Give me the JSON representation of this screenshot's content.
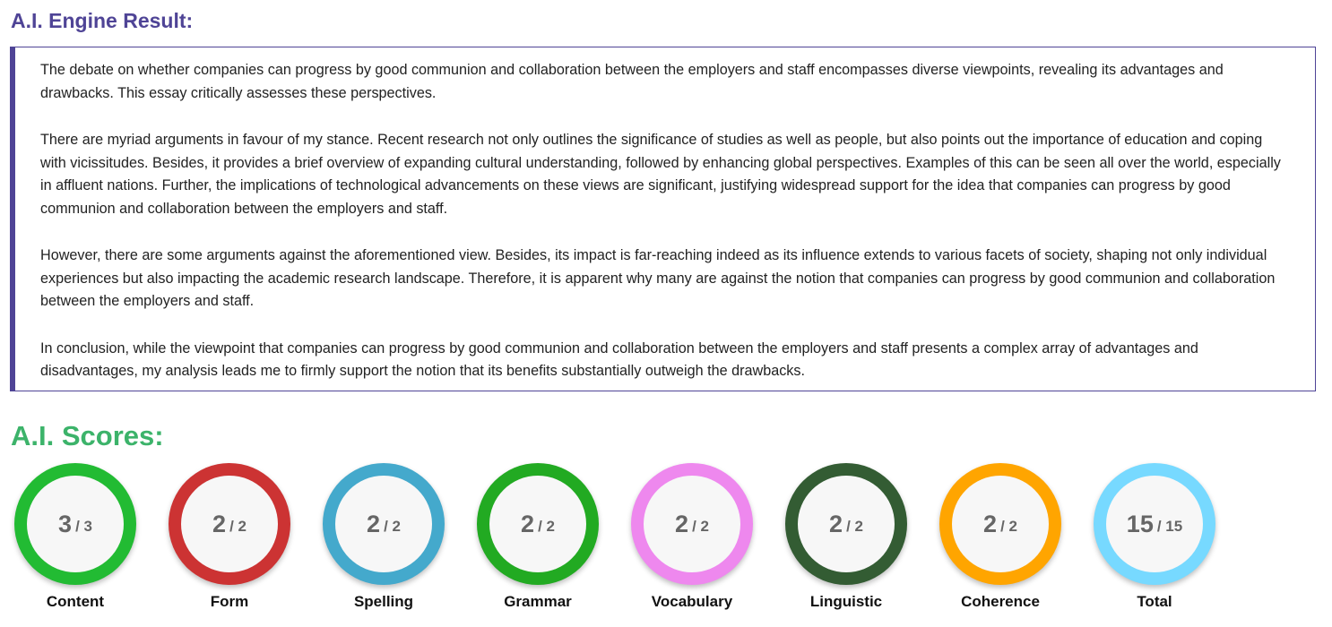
{
  "result": {
    "title": "A.I. Engine Result:",
    "paragraphs": [
      "The debate on whether companies can progress by good communion and collaboration between the employers and staff encompasses diverse viewpoints, revealing its advantages and drawbacks. This essay critically assesses these perspectives.",
      "There are myriad arguments in favour of my stance. Recent research not only outlines the significance of studies as well as people, but also points out the importance of education and coping with vicissitudes. Besides, it provides a brief overview of expanding cultural understanding, followed by enhancing global perspectives. Examples of this can be seen all over the world, especially in affluent nations. Further, the implications of technological advancements on these views are significant, justifying widespread support for the idea that companies can progress by good communion and collaboration between the employers and staff.",
      "However, there are some arguments against the aforementioned view. Besides, its impact is far-reaching indeed as its influence extends to various facets of society, shaping not only individual experiences but also impacting the academic research landscape. Therefore, it is apparent why many are against the notion that companies can progress by good communion and collaboration between the employers and staff.",
      "In conclusion, while the viewpoint that companies can progress by good communion and collaboration between the employers and staff presents a complex array of advantages and disadvantages, my analysis leads me to firmly support the notion that its benefits substantially outweigh the drawbacks."
    ]
  },
  "scores": {
    "title": "A.I. Scores:",
    "items": [
      {
        "label": "Content",
        "value": "3",
        "max": "/ 3",
        "color": "#22bb33"
      },
      {
        "label": "Form",
        "value": "2",
        "max": "/ 2",
        "color": "#cc3333"
      },
      {
        "label": "Spelling",
        "value": "2",
        "max": "/ 2",
        "color": "#44a9cc"
      },
      {
        "label": "Grammar",
        "value": "2",
        "max": "/ 2",
        "color": "#22aa22"
      },
      {
        "label": "Vocabulary",
        "value": "2",
        "max": "/ 2",
        "color": "#ee88ee"
      },
      {
        "label": "Linguistic",
        "value": "2",
        "max": "/ 2",
        "color": "#335c33"
      },
      {
        "label": "Coherence",
        "value": "2",
        "max": "/ 2",
        "color": "#ffa500"
      },
      {
        "label": "Total",
        "value": "15",
        "max": "/ 15",
        "color": "#77d9ff"
      }
    ]
  }
}
